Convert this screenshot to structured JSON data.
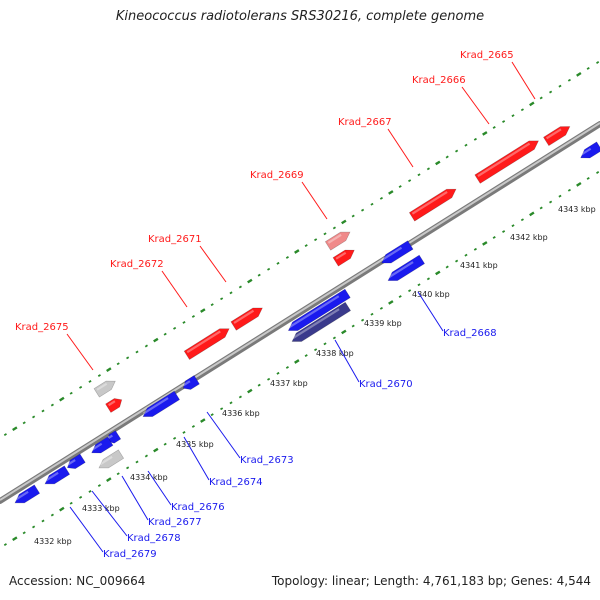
{
  "title": "Kineococcus radiotolerans SRS30216, complete genome",
  "footer": {
    "accession": "Accession: NC_009664",
    "summary": "Topology: linear; Length: 4,761,183 bp; Genes: 4,544"
  },
  "colors": {
    "forward": "#ff1a1a",
    "forward_light": "#f08a8a",
    "reverse": "#1a1aee",
    "reverse_dark": "#3a3a8c",
    "pseudo": "#c8c8c8",
    "scale_tick": "#2a8a2a",
    "backbone": "#909090"
  },
  "scale": {
    "unit": "kbp",
    "ticks": [
      "4332 kbp",
      "4333 kbp",
      "4334 kbp",
      "4335 kbp",
      "4336 kbp",
      "4337 kbp",
      "4338 kbp",
      "4339 kbp",
      "4340 kbp",
      "4341 kbp",
      "4342 kbp",
      "4343 kbp"
    ]
  },
  "forward_genes": [
    "Krad_2675",
    "Krad_2672",
    "Krad_2671",
    "Krad_2669",
    "Krad_2667",
    "Krad_2666",
    "Krad_2665"
  ],
  "reverse_genes": [
    "Krad_2679",
    "Krad_2678",
    "Krad_2677",
    "Krad_2676",
    "Krad_2674",
    "Krad_2673",
    "Krad_2670",
    "Krad_2668"
  ]
}
